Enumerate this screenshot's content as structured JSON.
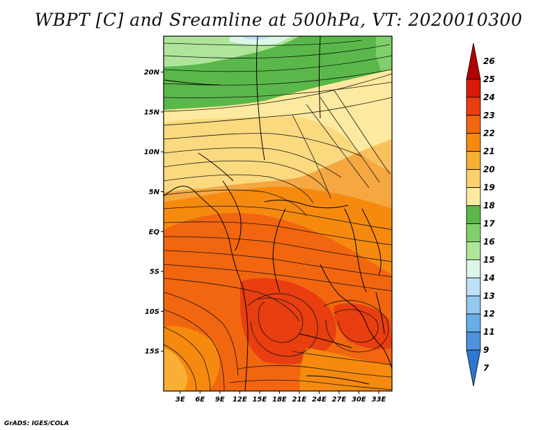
{
  "title": "WBPT [C] and Sreamline at 500hPa, VT: 2020010300",
  "credit": "GrADS: IGES/COLA",
  "map": {
    "lat_labels": [
      "20N",
      "15N",
      "10N",
      "5N",
      "EQ",
      "5S",
      "10S",
      "15S"
    ],
    "lat_values": [
      20,
      15,
      10,
      5,
      0,
      -5,
      -10,
      -15
    ],
    "lon_labels": [
      "3E",
      "6E",
      "9E",
      "12E",
      "15E",
      "18E",
      "21E",
      "24E",
      "27E",
      "30E",
      "33E"
    ],
    "lon_values": [
      3,
      6,
      9,
      12,
      15,
      18,
      21,
      24,
      27,
      30,
      33
    ],
    "lon_range": [
      0.5,
      35
    ],
    "lat_range": [
      -20,
      24.5
    ]
  },
  "colorbar": {
    "labels": [
      "26",
      "25",
      "24",
      "23",
      "22",
      "21",
      "20",
      "19",
      "18",
      "17",
      "16",
      "15",
      "14",
      "13",
      "12",
      "11",
      "9",
      "7"
    ],
    "colors": [
      "#b30000",
      "#d61a0a",
      "#e83e10",
      "#f2660f",
      "#f58a0f",
      "#f7b033",
      "#fbd06d",
      "#fdeaa0",
      "#5ab84a",
      "#7fd06a",
      "#aee59b",
      "#ddf6ea",
      "#bfe1f7",
      "#93c8ef",
      "#6aaee6",
      "#4d93dd",
      "#2f76d3"
    ]
  }
}
